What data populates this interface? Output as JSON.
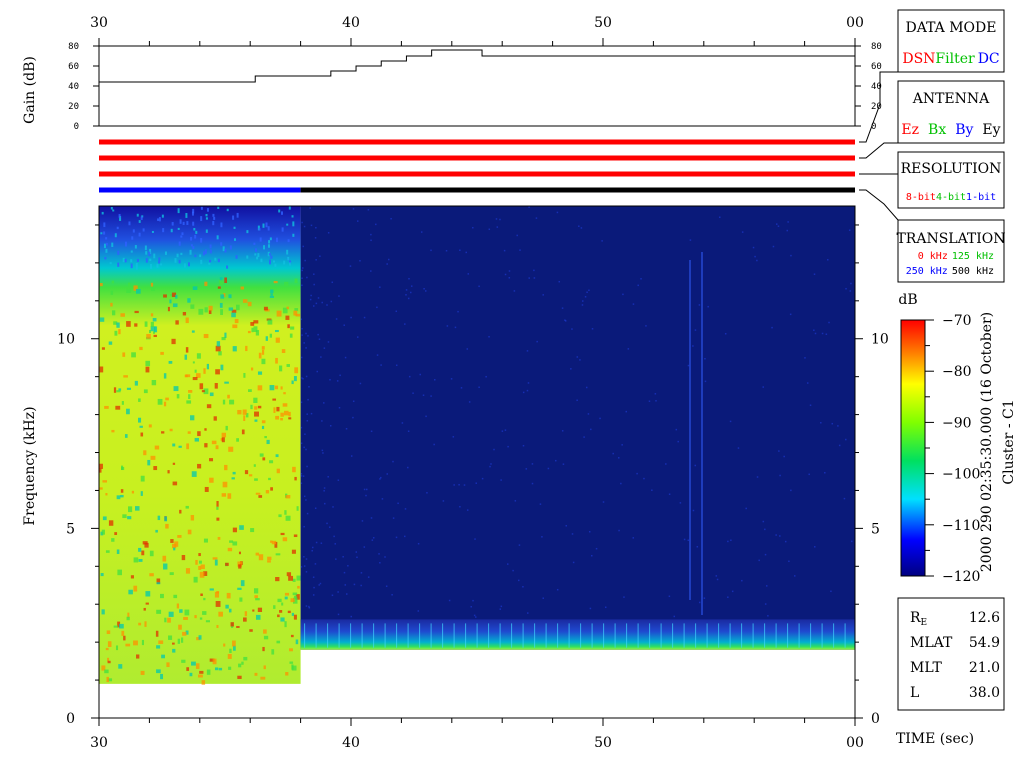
{
  "chart_data": [
    {
      "type": "line",
      "name": "gain-panel",
      "ylabel": "Gain (dB)",
      "y_ticks": [
        "0",
        "20",
        "40",
        "60",
        "80"
      ],
      "ylim": [
        0,
        80
      ],
      "xlim": [
        30,
        60
      ],
      "x_ticks": [
        "30",
        "40",
        "50",
        "00"
      ],
      "steps": [
        {
          "x0": 30.0,
          "x1": 36.2,
          "y": 44
        },
        {
          "x0": 36.2,
          "x1": 39.2,
          "y": 50
        },
        {
          "x0": 39.2,
          "x1": 40.2,
          "y": 55
        },
        {
          "x0": 40.2,
          "x1": 41.2,
          "y": 60
        },
        {
          "x0": 41.2,
          "x1": 42.2,
          "y": 65
        },
        {
          "x0": 42.2,
          "x1": 43.2,
          "y": 70
        },
        {
          "x0": 43.2,
          "x1": 45.2,
          "y": 76
        },
        {
          "x0": 45.2,
          "x1": 60.0,
          "y": 70
        }
      ]
    },
    {
      "type": "heatmap",
      "name": "spectrogram",
      "ylabel": "Frequency (kHz)",
      "xlabel": "TIME (sec)",
      "xlim": [
        30,
        60
      ],
      "ylim": [
        0,
        13.5
      ],
      "x_ticks": [
        "30",
        "40",
        "50",
        "00"
      ],
      "y_ticks": [
        "0",
        "5",
        "10"
      ],
      "colorbar": {
        "label": "dB",
        "range": [
          -120,
          -70
        ],
        "ticks": [
          "-70",
          "-80",
          "-90",
          "-100",
          "-110",
          "-120"
        ]
      },
      "regions": [
        {
          "x0": 30,
          "x1": 38,
          "fmin": 0.9,
          "fmax": 13.5,
          "level": "high",
          "db_typical": -88
        },
        {
          "x0": 38,
          "x1": 60,
          "fmin": 1.8,
          "fmax": 13.5,
          "level": "low",
          "db_typical": -120
        },
        {
          "x0": 38,
          "x1": 60,
          "fmin": 1.8,
          "fmax": 2.6,
          "level": "band",
          "db_typical": -108
        }
      ]
    }
  ],
  "mode_bars": [
    {
      "label": "DATA MODE",
      "color": "#ff0000"
    },
    {
      "label": "ANTENNA",
      "color": "#ff0000"
    },
    {
      "label": "RESOLUTION",
      "color": "#ff0000"
    },
    {
      "label": "TRANSLATION",
      "segments": [
        {
          "x0": 30,
          "x1": 38,
          "color": "#0000ff"
        },
        {
          "x0": 38,
          "x1": 60,
          "color": "#000000"
        }
      ]
    }
  ],
  "legends": {
    "data_mode": {
      "title": "DATA MODE",
      "items": [
        {
          "text": "DSN",
          "color": "#ff0000"
        },
        {
          "text": "Filter",
          "color": "#00c000"
        },
        {
          "text": "DC",
          "color": "#0000ff"
        }
      ]
    },
    "antenna": {
      "title": "ANTENNA",
      "items": [
        {
          "text": "Ez",
          "color": "#ff0000"
        },
        {
          "text": "Bx",
          "color": "#00c000"
        },
        {
          "text": "By",
          "color": "#0000ff"
        },
        {
          "text": "Ey",
          "color": "#000000"
        }
      ]
    },
    "resolution": {
      "title": "RESOLUTION",
      "items": [
        {
          "text": "8-bit",
          "color": "#ff0000"
        },
        {
          "text": "4-bit",
          "color": "#00c000"
        },
        {
          "text": "1-bit",
          "color": "#0000ff"
        }
      ]
    },
    "translation": {
      "title": "TRANSLATION",
      "row1": [
        {
          "text": "0 kHz",
          "color": "#ff0000"
        },
        {
          "text": "125 kHz",
          "color": "#00c000"
        }
      ],
      "row2": [
        {
          "text": "250 kHz",
          "color": "#0000ff"
        },
        {
          "text": "500 kHz",
          "color": "#000000"
        }
      ]
    }
  },
  "side_caption": {
    "timestamp": "2000 290 02:35:30.000 (16 October)",
    "spacecraft": "Cluster - C1"
  },
  "orbit": {
    "rows": [
      {
        "label": "R",
        "sub": "E",
        "value": "12.6"
      },
      {
        "label": "MLAT",
        "sub": "",
        "value": "54.9"
      },
      {
        "label": "MLT",
        "sub": "",
        "value": "21.0"
      },
      {
        "label": "L",
        "sub": "",
        "value": "38.0"
      }
    ]
  }
}
